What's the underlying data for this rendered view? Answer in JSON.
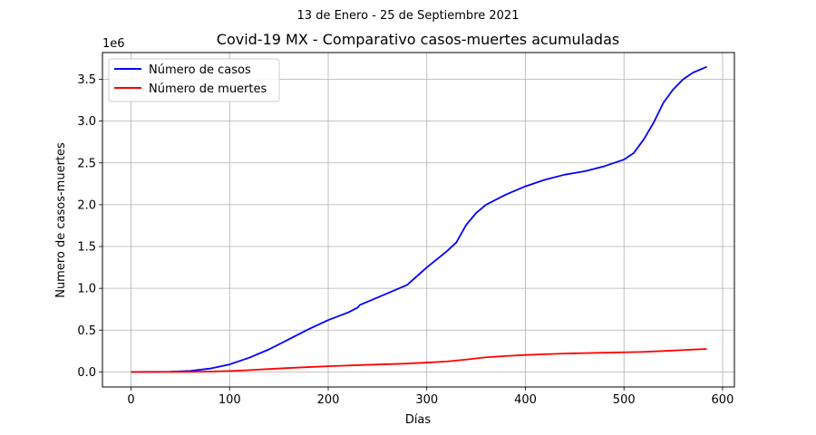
{
  "chart_data": {
    "type": "line",
    "suptitle": "13 de Enero - 25 de Septiembre 2021",
    "title": "Covid-19 MX - Comparativo casos-muertes acumuladas",
    "xlabel": "Días",
    "ylabel": "Numero de casos-muertes",
    "offset_label": "1e6",
    "xlim": [
      -29,
      612
    ],
    "ylim": [
      -0.18,
      3.82
    ],
    "xticks": [
      0,
      100,
      200,
      300,
      400,
      500,
      600
    ],
    "yticks": [
      0.0,
      0.5,
      1.0,
      1.5,
      2.0,
      2.5,
      3.0,
      3.5
    ],
    "xtick_labels": [
      "0",
      "100",
      "200",
      "300",
      "400",
      "500",
      "600"
    ],
    "ytick_labels": [
      "0.0",
      "0.5",
      "1.0",
      "1.5",
      "2.0",
      "2.5",
      "3.0",
      "3.5"
    ],
    "grid": true,
    "legend_position": "top-left",
    "series": [
      {
        "name": "Número de casos",
        "color": "#0000ff",
        "points": [
          [
            0,
            0
          ],
          [
            20,
            0.001
          ],
          [
            40,
            0.003
          ],
          [
            60,
            0.012
          ],
          [
            80,
            0.04
          ],
          [
            100,
            0.09
          ],
          [
            120,
            0.17
          ],
          [
            140,
            0.27
          ],
          [
            160,
            0.39
          ],
          [
            180,
            0.51
          ],
          [
            200,
            0.62
          ],
          [
            220,
            0.71
          ],
          [
            230,
            0.77
          ],
          [
            232,
            0.8
          ],
          [
            250,
            0.89
          ],
          [
            270,
            0.99
          ],
          [
            280,
            1.04
          ],
          [
            300,
            1.25
          ],
          [
            320,
            1.44
          ],
          [
            330,
            1.55
          ],
          [
            340,
            1.76
          ],
          [
            350,
            1.9
          ],
          [
            360,
            2.0
          ],
          [
            380,
            2.12
          ],
          [
            400,
            2.22
          ],
          [
            420,
            2.3
          ],
          [
            440,
            2.36
          ],
          [
            460,
            2.4
          ],
          [
            480,
            2.46
          ],
          [
            500,
            2.54
          ],
          [
            510,
            2.62
          ],
          [
            520,
            2.78
          ],
          [
            530,
            2.98
          ],
          [
            540,
            3.22
          ],
          [
            550,
            3.38
          ],
          [
            560,
            3.5
          ],
          [
            570,
            3.58
          ],
          [
            584,
            3.65
          ]
        ]
      },
      {
        "name": "Número de muertes",
        "color": "#ff0000",
        "points": [
          [
            0,
            0
          ],
          [
            40,
            0.0003
          ],
          [
            60,
            0.001
          ],
          [
            80,
            0.004
          ],
          [
            100,
            0.011
          ],
          [
            120,
            0.022
          ],
          [
            140,
            0.035
          ],
          [
            160,
            0.047
          ],
          [
            180,
            0.058
          ],
          [
            200,
            0.068
          ],
          [
            240,
            0.085
          ],
          [
            280,
            0.1
          ],
          [
            300,
            0.112
          ],
          [
            320,
            0.125
          ],
          [
            340,
            0.148
          ],
          [
            360,
            0.175
          ],
          [
            380,
            0.19
          ],
          [
            400,
            0.203
          ],
          [
            420,
            0.212
          ],
          [
            440,
            0.22
          ],
          [
            460,
            0.225
          ],
          [
            480,
            0.23
          ],
          [
            500,
            0.235
          ],
          [
            520,
            0.24
          ],
          [
            540,
            0.25
          ],
          [
            560,
            0.262
          ],
          [
            584,
            0.275
          ]
        ]
      }
    ]
  }
}
